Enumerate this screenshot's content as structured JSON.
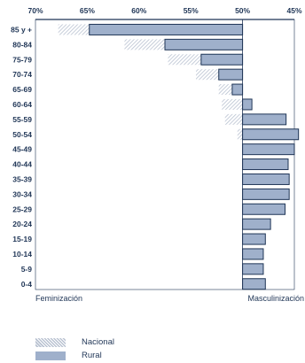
{
  "chart_data": {
    "type": "bar",
    "orientation": "horizontal",
    "title": "",
    "x_ticks": [
      "70%",
      "65%",
      "60%",
      "55%",
      "50%",
      "45%"
    ],
    "x_tick_values": [
      70,
      65,
      60,
      55,
      50,
      45
    ],
    "xlim": [
      70,
      45
    ],
    "reference": 50,
    "left_label": "Feminización",
    "right_label": "Masculinización",
    "categories": [
      "85 y +",
      "80-84",
      "75-79",
      "70-74",
      "65-69",
      "60-64",
      "55-59",
      "50-54",
      "45-49",
      "40-44",
      "35-39",
      "30-34",
      "25-29",
      "20-24",
      "15-19",
      "10-14",
      "5-9",
      "0-4"
    ],
    "series": [
      {
        "name": "Nacional",
        "values": [
          67.8,
          61.4,
          57.2,
          54.5,
          52.3,
          52.0,
          51.7,
          50.5,
          49.8,
          49.3,
          48.8,
          48.6,
          48.8,
          49.1,
          49.4,
          49.3,
          49.3,
          49.3
        ]
      },
      {
        "name": "Rural",
        "values": [
          64.8,
          57.5,
          54.0,
          52.3,
          51.0,
          49.1,
          45.8,
          44.6,
          45.0,
          45.6,
          45.5,
          45.5,
          45.9,
          47.3,
          47.8,
          48.0,
          48.0,
          47.8
        ]
      }
    ],
    "colors": {
      "nacional": "#b9c2d1",
      "rural": "#9fb0cb",
      "rural_edge": "#1f3556",
      "axis": "#1f3556"
    },
    "grid": false,
    "legend_placement": "bottom-left"
  },
  "legend": [
    {
      "label": "Nacional",
      "style": "hatched",
      "color": "#b9c2d1"
    },
    {
      "label": "Rural",
      "style": "solid",
      "color": "#9fb0cb"
    }
  ]
}
